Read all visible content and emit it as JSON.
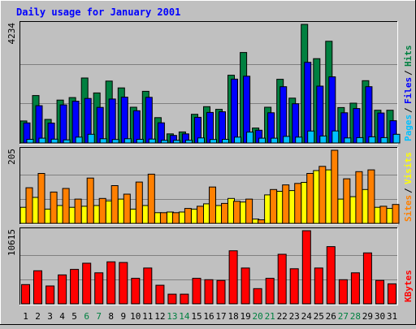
{
  "chart_data": {
    "type": "bar",
    "title": "Daily usage for January 2001",
    "categories": [
      "1",
      "2",
      "3",
      "4",
      "5",
      "6",
      "7",
      "8",
      "9",
      "10",
      "11",
      "12",
      "13",
      "14",
      "15",
      "16",
      "17",
      "18",
      "19",
      "20",
      "21",
      "22",
      "23",
      "24",
      "25",
      "26",
      "27",
      "28",
      "29",
      "30",
      "31"
    ],
    "weekend_days": [
      "6",
      "7",
      "13",
      "14",
      "20",
      "21",
      "27",
      "28"
    ],
    "panels": [
      {
        "id": "hits_files_pages",
        "ymax_label": "4234",
        "ylim": [
          0,
          4234
        ],
        "legend": [
          {
            "label": "Hits",
            "color": "#008040"
          },
          {
            "label": "Files",
            "color": "#0000ff"
          },
          {
            "label": "Pages",
            "color": "#00c0ff"
          }
        ],
        "series": [
          {
            "name": "Hits",
            "values": [
              785,
              1695,
              840,
              1530,
              1620,
              2320,
              1785,
              2210,
              1965,
              1275,
              1845,
              904,
              325,
              395,
              1025,
              1295,
              1200,
              2420,
              3230,
              535,
              1275,
              2275,
              1600,
              4234,
              3010,
              3630,
              1265,
              1420,
              2225,
              1170,
              1170
            ]
          },
          {
            "name": "Files",
            "values": [
              715,
              1330,
              710,
              1360,
              1490,
              1590,
              1270,
              1570,
              1635,
              1150,
              1630,
              720,
              270,
              325,
              915,
              1090,
              1115,
              2280,
              2385,
              455,
              1080,
              2010,
              1400,
              2880,
              2030,
              2360,
              1080,
              1230,
              2010,
              1070,
              795
            ]
          },
          {
            "name": "Pages",
            "values": [
              130,
              170,
              135,
              110,
              210,
              310,
              150,
              125,
              150,
              130,
              140,
              95,
              95,
              100,
              180,
              125,
              130,
              210,
              390,
              170,
              170,
              235,
              210,
              425,
              250,
              430,
              180,
              190,
              220,
              190,
              310
            ]
          }
        ]
      },
      {
        "id": "visits_sites",
        "ymax_label": "205",
        "ylim": [
          0,
          205
        ],
        "legend": [
          {
            "label": "Visits",
            "color": "#ffff00"
          },
          {
            "label": "Sites",
            "color": "#ff8000"
          }
        ],
        "series": [
          {
            "name": "Visits",
            "values": [
              45,
              73,
              40,
              50,
              45,
              48,
              50,
              63,
              68,
              40,
              50,
              30,
              32,
              32,
              40,
              55,
              50,
              70,
              60,
              12,
              80,
              90,
              92,
              115,
              148,
              150,
              68,
              75,
              95,
              45,
              42
            ]
          },
          {
            "name": "Sites",
            "values": [
              100,
              140,
              88,
              98,
              68,
              127,
              70,
              106,
              82,
              116,
              138,
              30,
              30,
              42,
              48,
              102,
              56,
              62,
              68,
              10,
              95,
              108,
              112,
              140,
              160,
              205,
              125,
              145,
              150,
              48,
              53
            ]
          }
        ]
      },
      {
        "id": "kbytes",
        "ymax_label": "10615",
        "ylim": [
          0,
          10615
        ],
        "legend": [
          {
            "label": "KBytes",
            "color": "#ff0000"
          }
        ],
        "series": [
          {
            "name": "KBytes",
            "values": [
              2800,
              4800,
              2600,
              4200,
              5000,
              5900,
              4500,
              6100,
              6000,
              3700,
              5200,
              2700,
              1400,
              1400,
              3700,
              3500,
              3400,
              7700,
              5200,
              2200,
              3700,
              7200,
              5100,
              10615,
              5200,
              8300,
              3500,
              4500,
              7400,
              3400,
              2900
            ]
          }
        ]
      }
    ]
  }
}
